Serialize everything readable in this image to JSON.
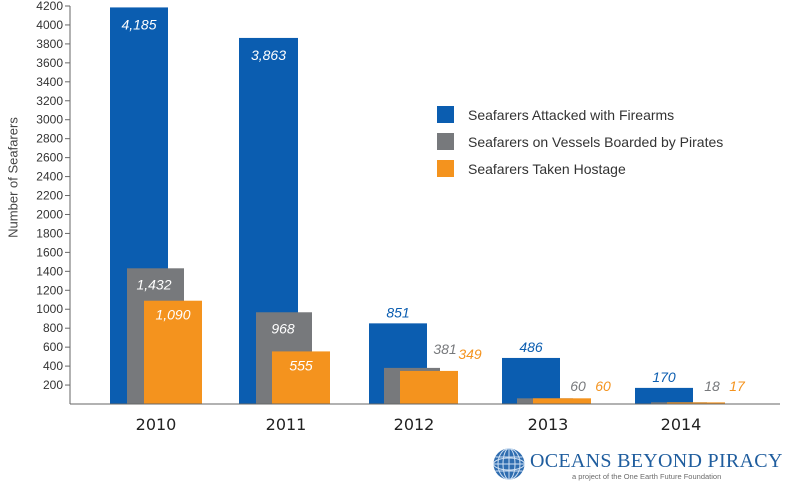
{
  "chart_data": {
    "type": "bar",
    "title": "",
    "xlabel": "",
    "ylabel": "Number of Seafarers",
    "ylim": [
      0,
      4200
    ],
    "yticks": [
      200,
      400,
      600,
      800,
      1000,
      1200,
      1400,
      1600,
      1800,
      2000,
      2200,
      2400,
      2600,
      2800,
      3000,
      3200,
      3400,
      3600,
      3800,
      4000,
      4200
    ],
    "categories": [
      "2010",
      "2011",
      "2012",
      "2013",
      "2014"
    ],
    "series": [
      {
        "name": "Seafarers Attacked with Firearms",
        "values": [
          4185,
          3863,
          851,
          486,
          170
        ],
        "labels": [
          "4,185",
          "3,863",
          "851",
          "486",
          "170"
        ],
        "color": "#0b5db0"
      },
      {
        "name": "Seafarers on Vessels Boarded by Pirates",
        "values": [
          1432,
          968,
          381,
          60,
          18
        ],
        "labels": [
          "1,432",
          "968",
          "381",
          "60",
          "18"
        ],
        "color": "#77797c"
      },
      {
        "name": "Seafarers Taken Hostage",
        "values": [
          1090,
          555,
          349,
          60,
          17
        ],
        "labels": [
          "1,090",
          "555",
          "349",
          "60",
          "17"
        ],
        "color": "#f4931e"
      }
    ],
    "grid": false,
    "legend_position": "right"
  },
  "logo": {
    "title": "OCEANS BEYOND PIRACY",
    "subtitle": "a project of the One Earth Future Foundation"
  }
}
